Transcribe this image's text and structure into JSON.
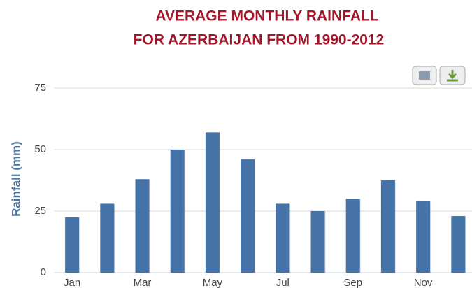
{
  "chart_data": {
    "type": "bar",
    "title": [
      "AVERAGE MONTHLY RAINFALL",
      "FOR AZERBAIJAN FROM 1990-2012"
    ],
    "y_label": "Rainfall (mm)",
    "categories": [
      "Jan",
      null,
      "Mar",
      null,
      "May",
      null,
      "Jul",
      null,
      "Sep",
      null,
      "Nov",
      null
    ],
    "values": [
      22.5,
      28,
      38,
      50,
      57,
      46,
      28,
      25,
      30,
      37.5,
      29,
      23
    ],
    "color": "#4572a7",
    "ylim": [
      0,
      75
    ],
    "yticks": [
      0,
      25,
      50,
      75
    ],
    "grid": true
  }
}
